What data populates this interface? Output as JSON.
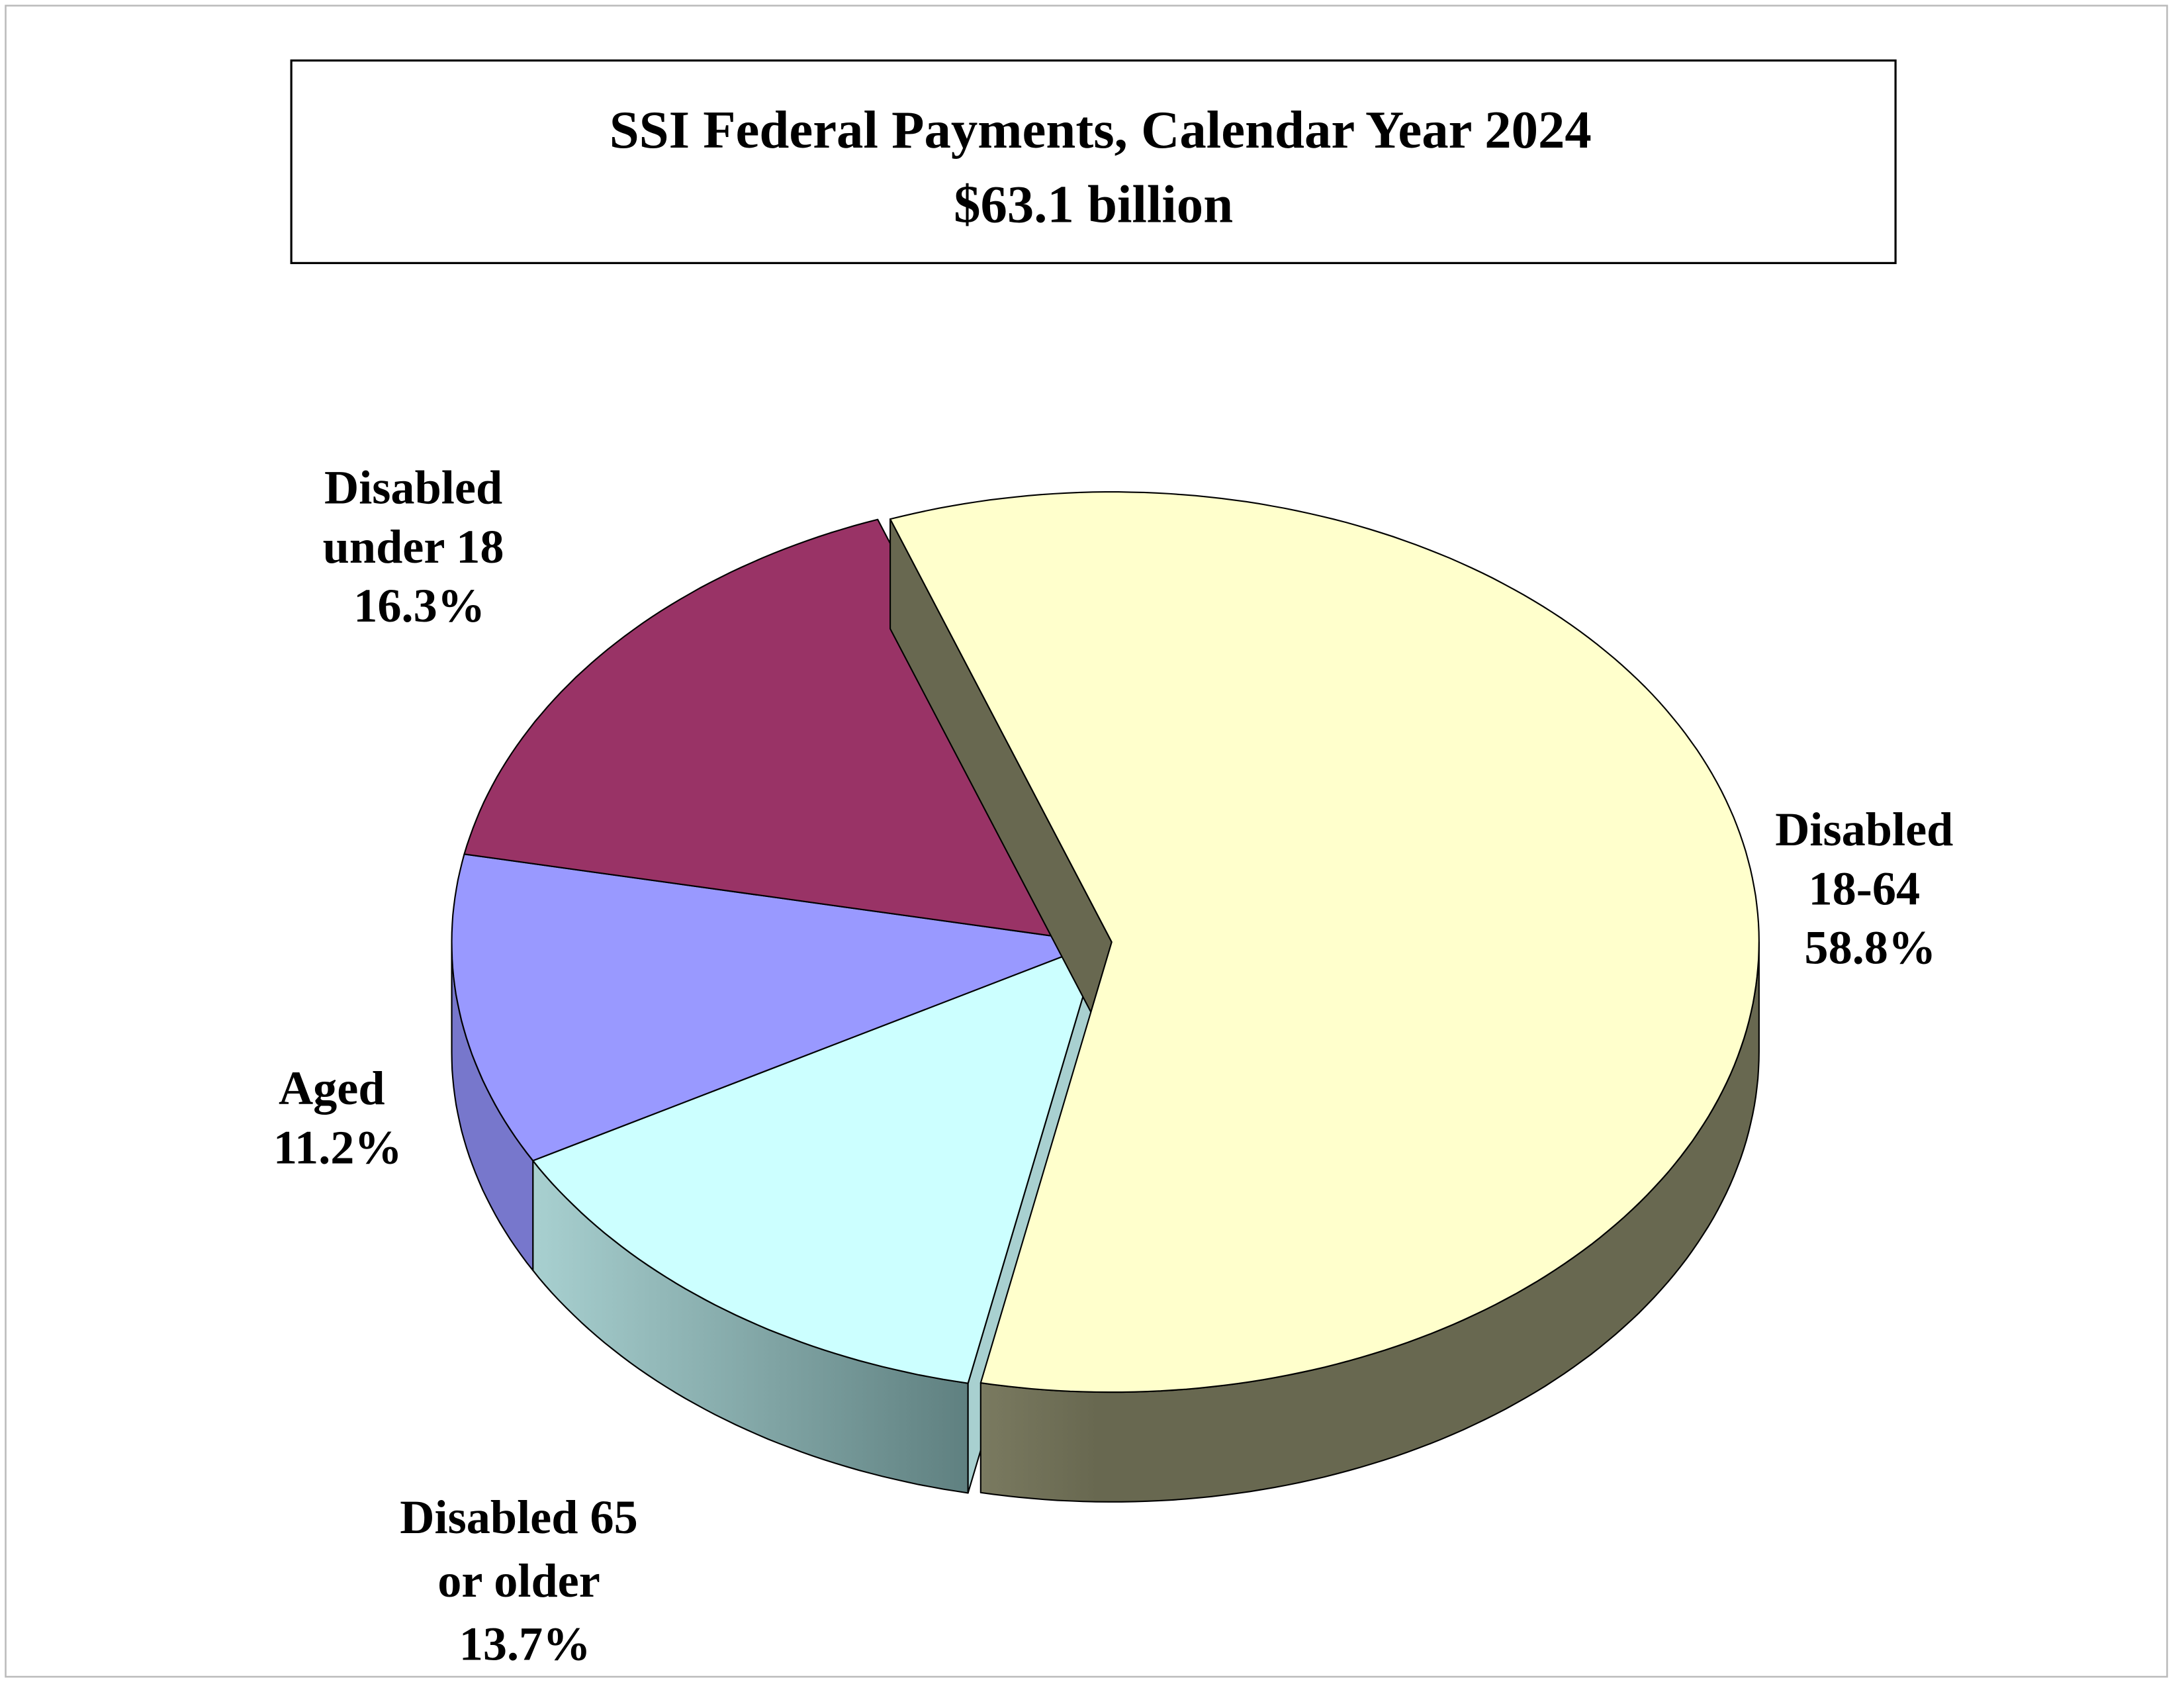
{
  "chart_data": {
    "type": "pie",
    "title": "SSI Federal Payments, Calendar Year 2024",
    "subtitle": "$63.1 billion",
    "three_d": true,
    "exploded_slice": "Disabled 18-64",
    "slices": [
      {
        "label_lines": [
          "Disabled",
          "18-64",
          "58.8%"
        ],
        "name": "Disabled 18-64",
        "value": 58.8,
        "top_color": "#FFFFCC",
        "side_color": "#686850"
      },
      {
        "label_lines": [
          "Disabled 65",
          "or older",
          "13.7%"
        ],
        "name": "Disabled 65 or older",
        "value": 13.7,
        "top_color": "#CCFFFF",
        "side_color": "#6A8C8C"
      },
      {
        "label_lines": [
          "Aged",
          "11.2%"
        ],
        "name": "Aged",
        "value": 11.2,
        "top_color": "#9999FF",
        "side_color": "#7777CC"
      },
      {
        "label_lines": [
          "Disabled",
          "under 18",
          "16.3%"
        ],
        "name": "Disabled under 18",
        "value": 16.3,
        "top_color": "#993366",
        "side_color": "#6E2448"
      }
    ]
  }
}
